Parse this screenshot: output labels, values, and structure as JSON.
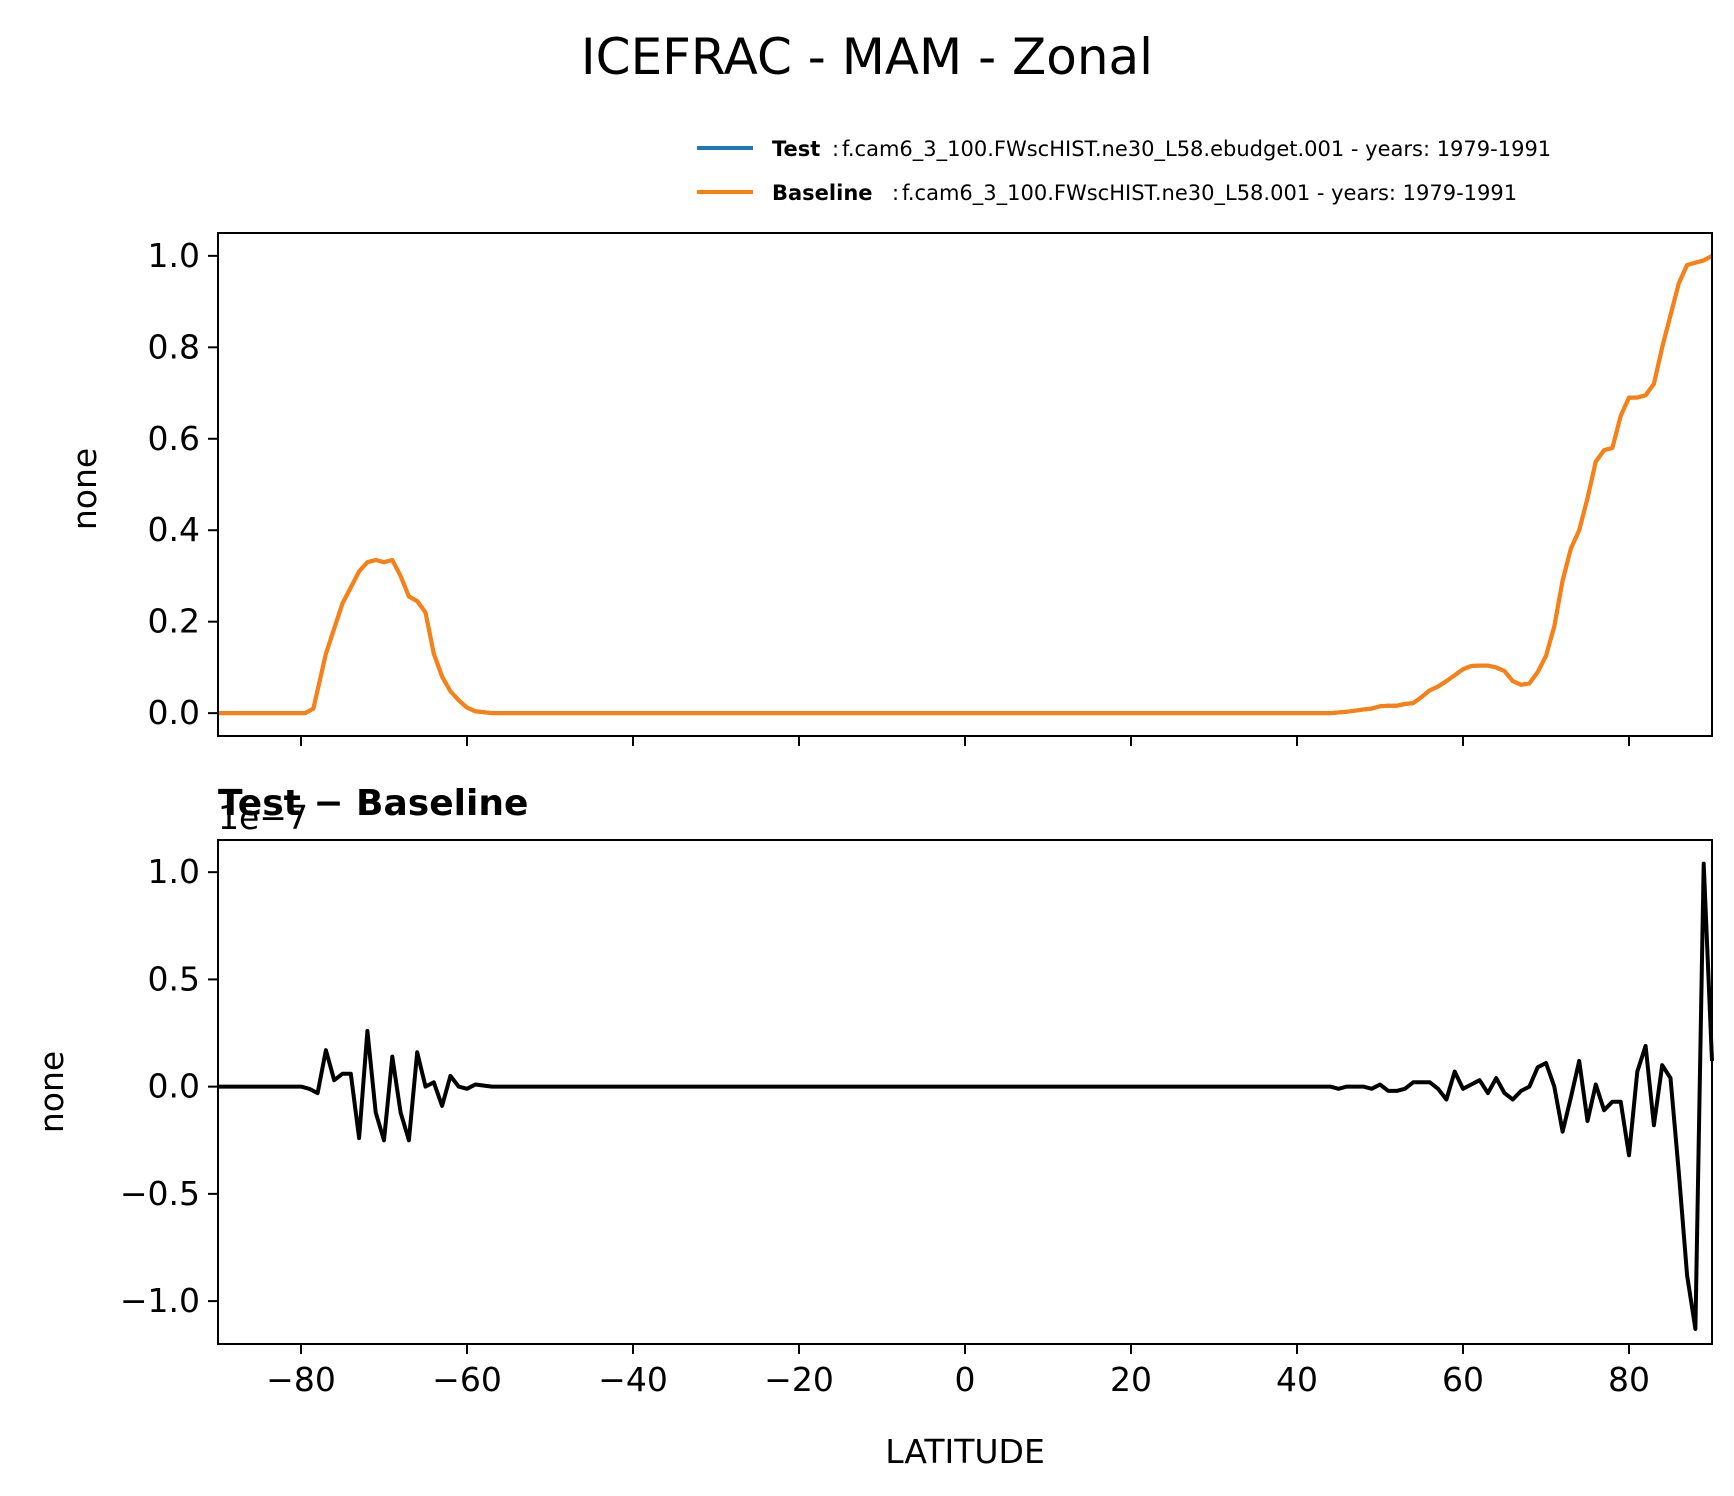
{
  "figure": {
    "title": "ICEFRAC - MAM - Zonal"
  },
  "legend": {
    "placement": "above-top-right",
    "entries": [
      {
        "label": "Test",
        "description": "f.cam6_3_100.FWscHIST.ne30_L58.ebudget.001 - years: 1979-1991",
        "color": "#1f77b4"
      },
      {
        "label": "Baseline",
        "description": "f.cam6_3_100.FWscHIST.ne30_L58.001 - years: 1979-1991",
        "color": "#ff7f0e"
      }
    ]
  },
  "chart_data": [
    {
      "type": "line",
      "title": "",
      "xlabel": "",
      "ylabel": "none",
      "xlim": [
        -90,
        90
      ],
      "ylim": [
        -0.05,
        1.05
      ],
      "yticks": [
        0.0,
        0.2,
        0.4,
        0.6,
        0.8,
        1.0
      ],
      "ytick_labels": [
        "0.0",
        "0.2",
        "0.4",
        "0.6",
        "0.8",
        "1.0"
      ],
      "xticks": [
        -80,
        -60,
        -40,
        -20,
        0,
        20,
        40,
        60,
        80
      ],
      "grid": false,
      "series": [
        {
          "name": "Test",
          "color": "#1f77b4",
          "x": [
            -90,
            -79.5,
            -78.5,
            -77,
            -75,
            -73,
            -72,
            -71,
            -70,
            -69,
            -68,
            -67,
            -66,
            -65,
            -64,
            -63,
            -62,
            -61,
            -60,
            -59,
            -57,
            -55,
            42,
            44,
            46,
            48,
            49,
            50,
            51,
            52,
            53,
            54,
            55,
            56,
            57,
            58,
            59,
            60,
            61,
            62,
            63,
            64,
            65,
            66,
            67,
            68,
            69,
            70,
            71,
            72,
            73,
            74,
            75,
            76,
            77,
            78,
            79,
            80,
            81,
            82,
            83,
            84,
            85,
            86,
            87,
            88,
            89,
            90
          ],
          "y": [
            0.0,
            0.0,
            0.01,
            0.13,
            0.24,
            0.31,
            0.33,
            0.335,
            0.33,
            0.335,
            0.3,
            0.255,
            0.245,
            0.22,
            0.13,
            0.08,
            0.048,
            0.028,
            0.012,
            0.004,
            0.0,
            0.0,
            0.0,
            0.0,
            0.003,
            0.008,
            0.01,
            0.015,
            0.016,
            0.016,
            0.02,
            0.022,
            0.035,
            0.05,
            0.058,
            0.07,
            0.083,
            0.096,
            0.103,
            0.104,
            0.104,
            0.1,
            0.092,
            0.07,
            0.062,
            0.065,
            0.09,
            0.125,
            0.19,
            0.29,
            0.36,
            0.4,
            0.47,
            0.55,
            0.575,
            0.58,
            0.65,
            0.69,
            0.69,
            0.695,
            0.72,
            0.8,
            0.87,
            0.94,
            0.98,
            0.985,
            0.99,
            1.0
          ]
        },
        {
          "name": "Baseline",
          "color": "#ff7f0e",
          "x": [
            -90,
            -79.5,
            -78.5,
            -77,
            -75,
            -73,
            -72,
            -71,
            -70,
            -69,
            -68,
            -67,
            -66,
            -65,
            -64,
            -63,
            -62,
            -61,
            -60,
            -59,
            -57,
            -55,
            42,
            44,
            46,
            48,
            49,
            50,
            51,
            52,
            53,
            54,
            55,
            56,
            57,
            58,
            59,
            60,
            61,
            62,
            63,
            64,
            65,
            66,
            67,
            68,
            69,
            70,
            71,
            72,
            73,
            74,
            75,
            76,
            77,
            78,
            79,
            80,
            81,
            82,
            83,
            84,
            85,
            86,
            87,
            88,
            89,
            90
          ],
          "y": [
            0.0,
            0.0,
            0.01,
            0.13,
            0.24,
            0.31,
            0.33,
            0.335,
            0.33,
            0.335,
            0.3,
            0.255,
            0.245,
            0.22,
            0.13,
            0.08,
            0.048,
            0.028,
            0.012,
            0.004,
            0.0,
            0.0,
            0.0,
            0.0,
            0.003,
            0.008,
            0.01,
            0.015,
            0.016,
            0.016,
            0.02,
            0.022,
            0.035,
            0.05,
            0.058,
            0.07,
            0.083,
            0.096,
            0.103,
            0.104,
            0.104,
            0.1,
            0.092,
            0.07,
            0.062,
            0.065,
            0.09,
            0.125,
            0.19,
            0.29,
            0.36,
            0.4,
            0.47,
            0.55,
            0.575,
            0.58,
            0.65,
            0.69,
            0.69,
            0.695,
            0.72,
            0.8,
            0.87,
            0.94,
            0.98,
            0.985,
            0.99,
            1.0
          ]
        }
      ]
    },
    {
      "type": "line",
      "title": "Test − Baseline",
      "xlabel": "LATITUDE",
      "ylabel": "none",
      "offset_label": "1e−7",
      "xlim": [
        -90,
        90
      ],
      "ylim": [
        -1.2,
        1.15
      ],
      "yticks": [
        -1.0,
        -0.5,
        0.0,
        0.5,
        1.0
      ],
      "ytick_labels": [
        "−1.0",
        "−0.5",
        "0.0",
        "0.5",
        "1.0"
      ],
      "xticks": [
        -80,
        -60,
        -40,
        -20,
        0,
        20,
        40,
        60,
        80
      ],
      "xtick_labels": [
        "−80",
        "−60",
        "−40",
        "−20",
        "0",
        "20",
        "40",
        "60",
        "80"
      ],
      "grid": false,
      "series": [
        {
          "name": "Test − Baseline",
          "color": "#000000",
          "x": [
            -90,
            -80,
            -79,
            -78,
            -77,
            -76,
            -75,
            -74,
            -73,
            -72,
            -71,
            -70,
            -69,
            -68,
            -67,
            -66,
            -65,
            -64,
            -63,
            -62,
            -61,
            -60,
            -59,
            -57,
            44,
            45,
            46,
            47,
            48,
            49,
            50,
            51,
            52,
            53,
            54,
            55,
            56,
            57,
            58,
            59,
            60,
            61,
            62,
            63,
            64,
            65,
            66,
            67,
            68,
            69,
            70,
            71,
            72,
            73,
            74,
            75,
            76,
            77,
            78,
            79,
            80,
            81,
            82,
            83,
            84,
            85,
            86,
            87,
            88,
            89,
            90
          ],
          "y": [
            0.0,
            0.0,
            -0.01,
            -0.03,
            0.17,
            0.03,
            0.06,
            0.06,
            -0.24,
            0.26,
            -0.12,
            -0.25,
            0.14,
            -0.12,
            -0.25,
            0.16,
            0.0,
            0.02,
            -0.09,
            0.05,
            0.0,
            -0.01,
            0.01,
            0.0,
            0.0,
            -0.01,
            0.0,
            0.0,
            0.0,
            -0.01,
            0.01,
            -0.02,
            -0.02,
            -0.01,
            0.02,
            0.02,
            0.02,
            -0.01,
            -0.06,
            0.07,
            -0.01,
            0.01,
            0.03,
            -0.03,
            0.04,
            -0.03,
            -0.06,
            -0.02,
            0.0,
            0.09,
            0.11,
            0.0,
            -0.21,
            -0.05,
            0.12,
            -0.16,
            0.01,
            -0.11,
            -0.07,
            -0.07,
            -0.32,
            0.07,
            0.19,
            -0.18,
            0.1,
            0.04,
            -0.4,
            -0.88,
            -1.13,
            1.04,
            0.12
          ]
        }
      ]
    }
  ]
}
